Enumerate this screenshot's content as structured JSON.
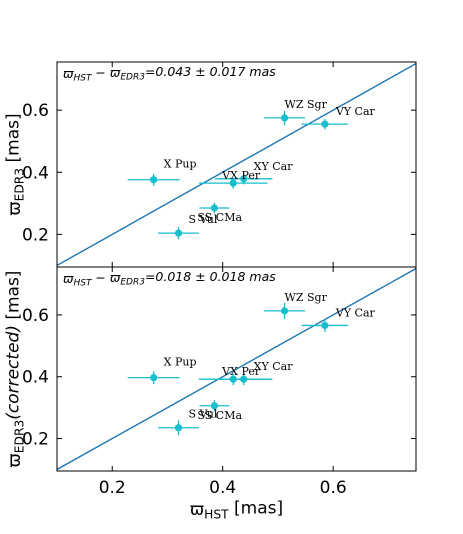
{
  "chart_data": [
    {
      "type": "scatter",
      "panel": "top",
      "annotation": "ϖHST − ϖEDR3=0.043 ± 0.017 mas",
      "annotation_parts": [
        "ϖ",
        "HST",
        " − ϖ",
        "EDR3",
        "=0.043 ± 0.017 mas"
      ],
      "xlabel": "",
      "ylabel": "ϖEDR3 [mas]",
      "ylabel_parts": [
        "ϖ",
        "EDR3",
        " [mas]"
      ],
      "xlim": [
        0.1,
        0.75
      ],
      "ylim": [
        0.095,
        0.755
      ],
      "xticks": [
        "0.2",
        "0.4",
        "0.6"
      ],
      "yticks": [
        "0.2",
        "0.4",
        "0.6"
      ],
      "ytick_values": [
        0.2,
        0.4,
        0.6
      ],
      "reference_line": "y = x",
      "points": [
        {
          "label": "WZ Sgr",
          "x": 0.512,
          "y": 0.575,
          "xerr": 0.037,
          "yerr": 0.023
        },
        {
          "label": "VY Car",
          "x": 0.585,
          "y": 0.555,
          "xerr": 0.042,
          "yerr": 0.017
        },
        {
          "label": "X Pup",
          "x": 0.275,
          "y": 0.376,
          "xerr": 0.047,
          "yerr": 0.019
        },
        {
          "label": "XY Car",
          "x": 0.438,
          "y": 0.379,
          "xerr": 0.052,
          "yerr": 0.018
        },
        {
          "label": "VX Per",
          "x": 0.419,
          "y": 0.365,
          "xerr": 0.062,
          "yerr": 0.018
        },
        {
          "label": "SS CMa",
          "x": 0.385,
          "y": 0.285,
          "xerr": 0.027,
          "yerr": 0.017
        },
        {
          "label": "S Vul",
          "x": 0.32,
          "y": 0.204,
          "xerr": 0.037,
          "yerr": 0.02
        }
      ]
    },
    {
      "type": "scatter",
      "panel": "bottom",
      "annotation": "ϖHST − ϖEDR3=0.018 ± 0.018 mas",
      "annotation_parts": [
        "ϖ",
        "HST",
        " − ϖ",
        "EDR3",
        "=0.018 ± 0.018 mas"
      ],
      "xlabel": "ϖHST [mas]",
      "xlabel_parts": [
        "ϖ",
        "HST",
        " [mas]"
      ],
      "ylabel": "ϖEDR3(corrected) [mas]",
      "ylabel_parts": [
        "ϖ",
        "EDR3",
        "(corrected)",
        " [mas]"
      ],
      "xlim": [
        0.1,
        0.75
      ],
      "ylim": [
        0.095,
        0.755
      ],
      "xticks": [
        "0.2",
        "0.4",
        "0.6"
      ],
      "xtick_values": [
        0.2,
        0.4,
        0.6
      ],
      "yticks": [
        "0.2",
        "0.4",
        "0.6"
      ],
      "ytick_values": [
        0.2,
        0.4,
        0.6
      ],
      "reference_line": "y = x",
      "points": [
        {
          "label": "WZ Sgr",
          "x": 0.512,
          "y": 0.613,
          "xerr": 0.037,
          "yerr": 0.026
        },
        {
          "label": "VY Car",
          "x": 0.585,
          "y": 0.566,
          "xerr": 0.042,
          "yerr": 0.021
        },
        {
          "label": "X Pup",
          "x": 0.275,
          "y": 0.397,
          "xerr": 0.047,
          "yerr": 0.021
        },
        {
          "label": "XY Car",
          "x": 0.438,
          "y": 0.392,
          "xerr": 0.052,
          "yerr": 0.019
        },
        {
          "label": "VX Per",
          "x": 0.419,
          "y": 0.392,
          "xerr": 0.062,
          "yerr": 0.019
        },
        {
          "label": "SS CMa",
          "x": 0.385,
          "y": 0.306,
          "xerr": 0.027,
          "yerr": 0.018
        },
        {
          "label": "S Vul",
          "x": 0.32,
          "y": 0.235,
          "xerr": 0.037,
          "yerr": 0.024
        }
      ]
    }
  ],
  "colors": {
    "points": "#17becf",
    "reference_line": "#1f77b4",
    "axes": "#000000"
  }
}
